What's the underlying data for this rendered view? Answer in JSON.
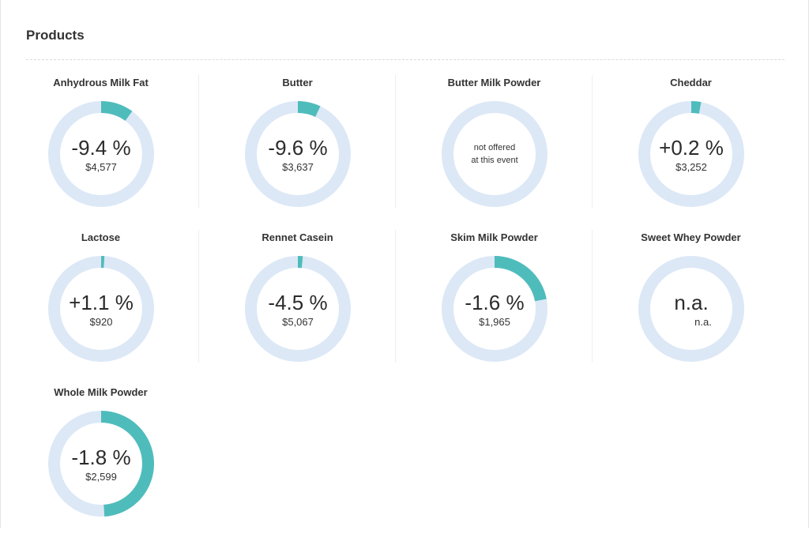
{
  "header": {
    "title": "Products"
  },
  "colors": {
    "accent": "#4fbcbc",
    "track": "#dce8f6"
  },
  "products": [
    {
      "name": "Anhydrous Milk Fat",
      "change": "-9.4 %",
      "price": "$4,577",
      "share": 0.1
    },
    {
      "name": "Butter",
      "change": "-9.6 %",
      "price": "$3,637",
      "share": 0.07
    },
    {
      "name": "Butter Milk Powder",
      "note_line1": "not offered",
      "note_line2": "at this event"
    },
    {
      "name": "Cheddar",
      "change": "+0.2 %",
      "price": "$3,252",
      "share": 0.03
    },
    {
      "name": "Lactose",
      "change": "+1.1 %",
      "price": "$920",
      "share": 0.01
    },
    {
      "name": "Rennet Casein",
      "change": "-4.5 %",
      "price": "$5,067",
      "share": 0.015
    },
    {
      "name": "Skim Milk Powder",
      "change": "-1.6 %",
      "price": "$1,965",
      "share": 0.22
    },
    {
      "name": "Sweet Whey Powder",
      "change": "n.a.",
      "price": "n.a."
    },
    {
      "name": "Whole Milk Powder",
      "change": "-1.8 %",
      "price": "$2,599",
      "share": 0.49
    }
  ]
}
